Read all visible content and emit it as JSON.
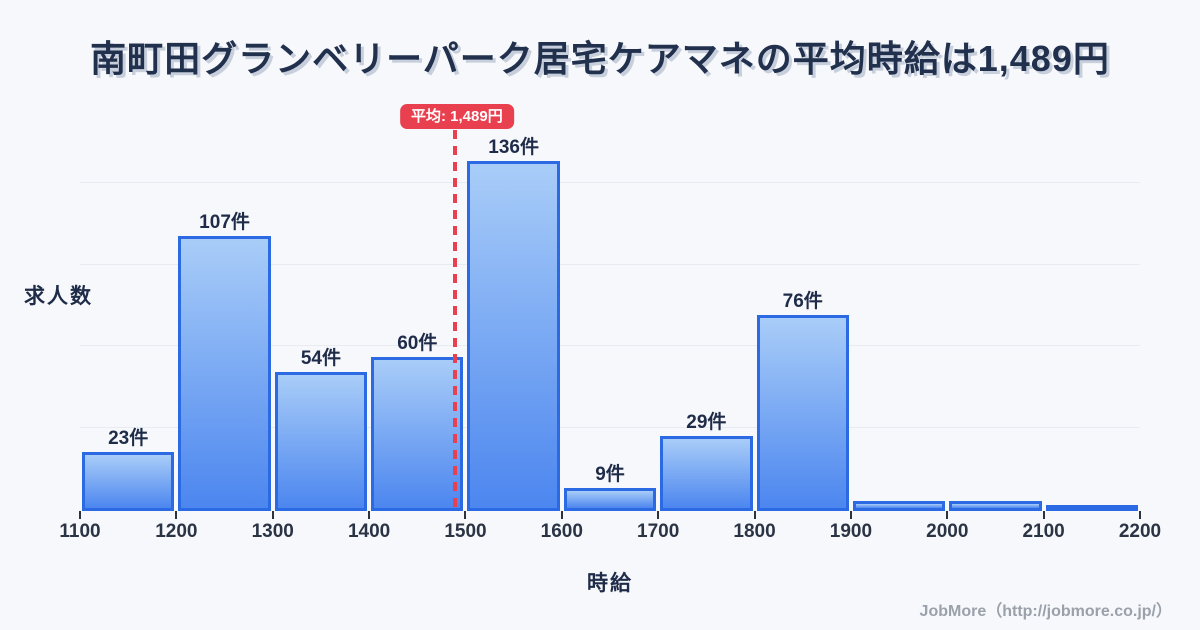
{
  "title": "南町田グランベリーパーク居宅ケアマネの平均時給は1,489円",
  "axes": {
    "y_label": "求人数",
    "x_label": "時給"
  },
  "average_badge_label": "平均: 1,489円",
  "footer_credit": "JobMore（http://jobmore.co.jp/）",
  "chart_data": {
    "type": "bar",
    "title": "南町田グランベリーパーク居宅ケアマネの平均時給は1,489円",
    "xlabel": "時給",
    "ylabel": "求人数",
    "x_ticks": [
      1100,
      1200,
      1300,
      1400,
      1500,
      1600,
      1700,
      1800,
      1900,
      2000,
      2100,
      2200
    ],
    "xlim": [
      1100,
      2200
    ],
    "ylim": [
      0,
      144
    ],
    "bin_width": 100,
    "grid": "horizontal-faint",
    "legend": "none",
    "bins": [
      {
        "range": [
          1100,
          1200
        ],
        "value": 23,
        "label": "23件"
      },
      {
        "range": [
          1200,
          1300
        ],
        "value": 107,
        "label": "107件"
      },
      {
        "range": [
          1300,
          1400
        ],
        "value": 54,
        "label": "54件"
      },
      {
        "range": [
          1400,
          1500
        ],
        "value": 60,
        "label": "60件"
      },
      {
        "range": [
          1500,
          1600
        ],
        "value": 136,
        "label": "136件"
      },
      {
        "range": [
          1600,
          1700
        ],
        "value": 9,
        "label": "9件"
      },
      {
        "range": [
          1700,
          1800
        ],
        "value": 29,
        "label": "29件"
      },
      {
        "range": [
          1800,
          1900
        ],
        "value": 76,
        "label": "76件"
      },
      {
        "range": [
          1900,
          2000
        ],
        "value": 4,
        "label": ""
      },
      {
        "range": [
          2000,
          2100
        ],
        "value": 4,
        "label": ""
      },
      {
        "range": [
          2100,
          2200
        ],
        "value": 2,
        "label": ""
      }
    ],
    "average_line": {
      "value": 1489,
      "label": "平均: 1,489円"
    },
    "colors": {
      "bar_gradient_top": "#a9cdf8",
      "bar_gradient_bottom": "#4c86ef",
      "bar_border": "#2b6ae2",
      "average_line": "#e8404e",
      "badge_background": "#e8404e",
      "badge_text": "#ffffff",
      "title_text": "#20304d",
      "background": "#f7f8fb"
    }
  }
}
